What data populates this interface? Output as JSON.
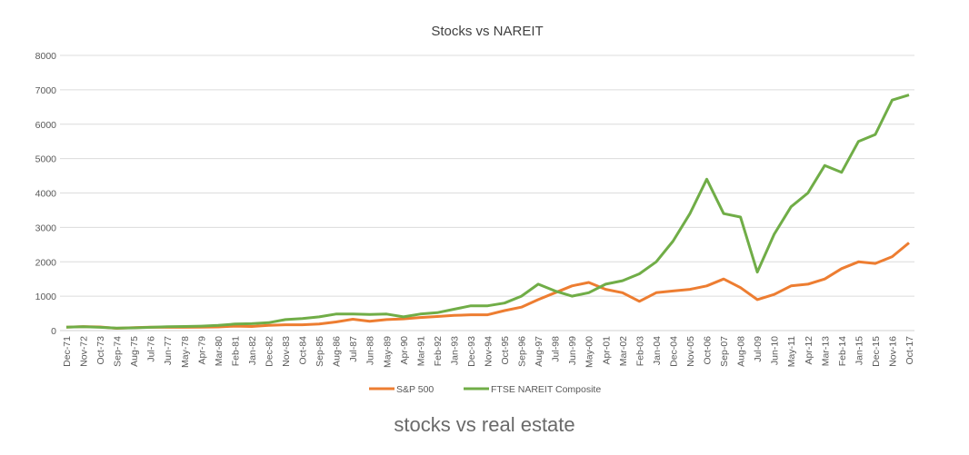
{
  "chart_data": {
    "type": "line",
    "title": "Stocks vs NAREIT",
    "xlabel": "",
    "ylabel": "",
    "ylim": [
      0,
      8000
    ],
    "yticks": [
      0,
      1000,
      2000,
      3000,
      4000,
      5000,
      6000,
      7000,
      8000
    ],
    "grid": true,
    "legend_position": "bottom",
    "categories": [
      "Dec-71",
      "Nov-72",
      "Oct-73",
      "Sep-74",
      "Aug-75",
      "Jul-76",
      "Jun-77",
      "May-78",
      "Apr-79",
      "Mar-80",
      "Feb-81",
      "Jan-82",
      "Dec-82",
      "Nov-83",
      "Oct-84",
      "Sep-85",
      "Aug-86",
      "Jul-87",
      "Jun-88",
      "May-89",
      "Apr-90",
      "Mar-91",
      "Feb-92",
      "Jan-93",
      "Dec-93",
      "Nov-94",
      "Oct-95",
      "Sep-96",
      "Aug-97",
      "Jul-98",
      "Jun-99",
      "May-00",
      "Apr-01",
      "Mar-02",
      "Feb-03",
      "Jan-04",
      "Dec-04",
      "Nov-05",
      "Oct-06",
      "Sep-07",
      "Aug-08",
      "Jul-09",
      "Jun-10",
      "May-11",
      "Apr-12",
      "Mar-13",
      "Feb-14",
      "Jan-15",
      "Dec-15",
      "Nov-16",
      "Oct-17"
    ],
    "series": [
      {
        "name": "S&P 500",
        "color": "#ED7D31",
        "values": [
          100,
          115,
          105,
          65,
          85,
          100,
          95,
          95,
          100,
          105,
          130,
          120,
          150,
          170,
          170,
          190,
          250,
          330,
          270,
          320,
          340,
          380,
          410,
          440,
          460,
          460,
          580,
          680,
          900,
          1100,
          1300,
          1400,
          1200,
          1100,
          850,
          1100,
          1150,
          1200,
          1300,
          1500,
          1250,
          900,
          1050,
          1300,
          1350,
          1500,
          1800,
          2000,
          1950,
          2150,
          2550
        ]
      },
      {
        "name": "FTSE NAREIT Composite",
        "color": "#70AD47",
        "values": [
          100,
          110,
          95,
          70,
          80,
          95,
          110,
          120,
          130,
          150,
          190,
          200,
          230,
          320,
          350,
          400,
          480,
          480,
          470,
          480,
          400,
          480,
          520,
          620,
          720,
          720,
          800,
          1000,
          1350,
          1150,
          1000,
          1100,
          1350,
          1450,
          1650,
          2000,
          2600,
          3400,
          4400,
          3400,
          3300,
          1700,
          2800,
          3600,
          4000,
          4800,
          4600,
          5500,
          5700,
          6700,
          6850
        ]
      }
    ]
  },
  "caption": "stocks vs real estate"
}
